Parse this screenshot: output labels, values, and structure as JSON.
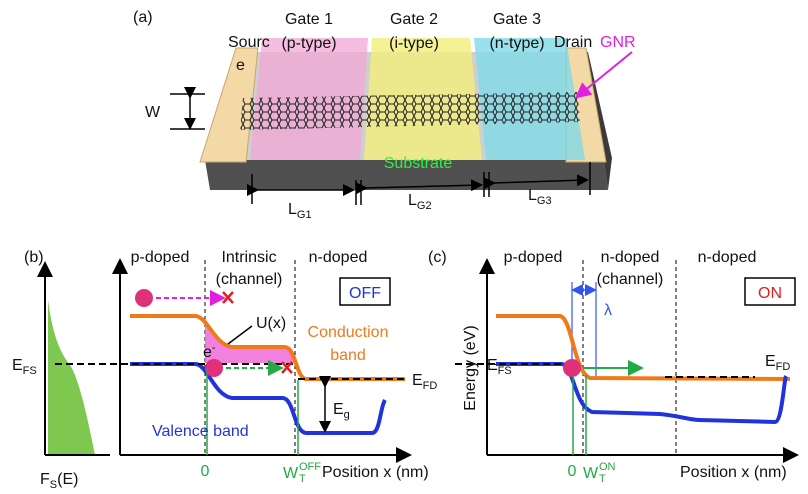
{
  "panel_a": {
    "label": "(a)",
    "gates": [
      {
        "name": "Gate 1",
        "type": "(p-type)"
      },
      {
        "name": "Gate 2",
        "type": "(i-type)"
      },
      {
        "name": "Gate 3",
        "type": "(n-type)"
      }
    ],
    "source": [
      "Sourc",
      "e"
    ],
    "drain": "Drain",
    "gnr": "GNR",
    "width": "W",
    "substrate": "Substrate",
    "lengths": [
      {
        "symbol": "L",
        "sub": "G1"
      },
      {
        "symbol": "L",
        "sub": "G2"
      },
      {
        "symbol": "L",
        "sub": "G3"
      }
    ]
  },
  "panel_b": {
    "label": "(b)",
    "regions": [
      "p-doped",
      "Intrinsic",
      "(channel)",
      "n-doped"
    ],
    "state": "OFF",
    "potential": "U(x)",
    "conduction": [
      "Conduction",
      "band"
    ],
    "electron": {
      "symbol": "e",
      "sup": "-"
    },
    "valence": "Valence band",
    "fermi_source": {
      "symbol": "E",
      "sub": "FS"
    },
    "fermi_drain": {
      "symbol": "E",
      "sub": "FD"
    },
    "gap": {
      "symbol": "E",
      "sub": "g"
    },
    "distribution": {
      "symbol": "F",
      "sub": "S",
      "arg": "(E)"
    },
    "x_origin": "0",
    "tunnel_width": {
      "symbol": "W",
      "sub": "T",
      "sup": "OFF"
    },
    "x_label": "Position x (nm)"
  },
  "panel_c": {
    "label": "(c)",
    "regions": [
      "p-doped",
      "n-doped",
      "(channel)",
      "n-doped"
    ],
    "state": "ON",
    "screening": "λ",
    "y_label": "Energy (eV)",
    "fermi_source": {
      "symbol": "E",
      "sub": "FS"
    },
    "fermi_drain": {
      "symbol": "E",
      "sub": "FD"
    },
    "x_origin": "0",
    "tunnel_width": {
      "symbol": "W",
      "sub": "T",
      "sup": "ON"
    },
    "x_label": "Position x (nm)"
  }
}
